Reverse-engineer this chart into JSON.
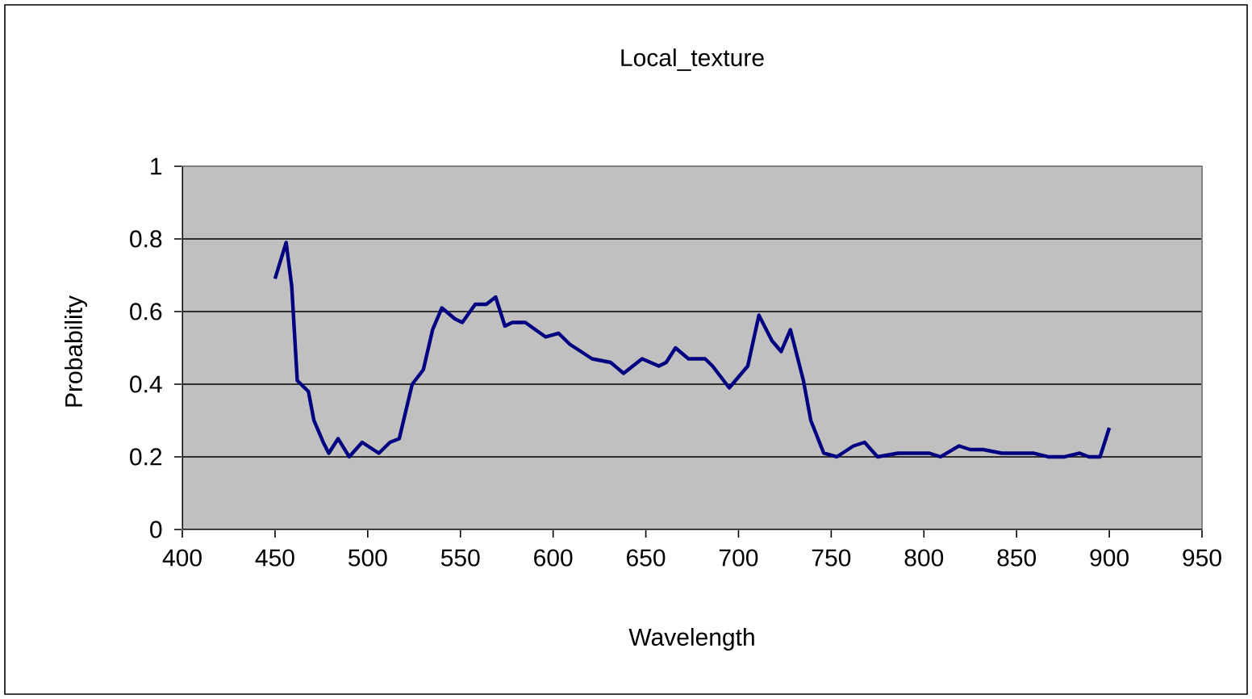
{
  "chart_data": {
    "type": "line",
    "title": "Local_texture",
    "xlabel": "Wavelength",
    "ylabel": "Probability",
    "xlim": [
      400,
      950
    ],
    "xticks": [
      400,
      450,
      500,
      550,
      600,
      650,
      700,
      750,
      800,
      850,
      900,
      950
    ],
    "ylim": [
      0,
      1
    ],
    "yticks": [
      0,
      0.2,
      0.4,
      0.6,
      0.8,
      1
    ],
    "grid": "y",
    "marker": "none",
    "line_style": "solid",
    "series": [
      {
        "color": "#000080",
        "x": [
          450,
          456,
          459,
          462,
          468,
          471,
          476,
          479,
          484,
          490,
          497,
          506,
          512,
          517,
          524,
          530,
          535,
          540,
          547,
          551,
          558,
          564,
          569,
          574,
          578,
          585,
          596,
          603,
          609,
          615,
          621,
          631,
          638,
          648,
          657,
          661,
          666,
          673,
          682,
          686,
          695,
          705,
          711,
          718,
          723,
          728,
          735,
          739,
          746,
          753,
          762,
          768,
          775,
          786,
          795,
          803,
          809,
          819,
          825,
          832,
          842,
          851,
          859,
          867,
          876,
          884,
          889,
          895,
          900
        ],
        "values": [
          0.69,
          0.79,
          0.67,
          0.41,
          0.38,
          0.3,
          0.24,
          0.21,
          0.25,
          0.2,
          0.24,
          0.21,
          0.24,
          0.25,
          0.4,
          0.44,
          0.55,
          0.61,
          0.58,
          0.57,
          0.62,
          0.62,
          0.64,
          0.56,
          0.57,
          0.57,
          0.53,
          0.54,
          0.51,
          0.49,
          0.47,
          0.46,
          0.43,
          0.47,
          0.45,
          0.46,
          0.5,
          0.47,
          0.47,
          0.45,
          0.39,
          0.45,
          0.59,
          0.52,
          0.49,
          0.55,
          0.41,
          0.3,
          0.21,
          0.2,
          0.23,
          0.24,
          0.2,
          0.21,
          0.21,
          0.21,
          0.2,
          0.23,
          0.22,
          0.22,
          0.21,
          0.21,
          0.21,
          0.2,
          0.2,
          0.21,
          0.2,
          0.2,
          0.28
        ]
      }
    ]
  }
}
